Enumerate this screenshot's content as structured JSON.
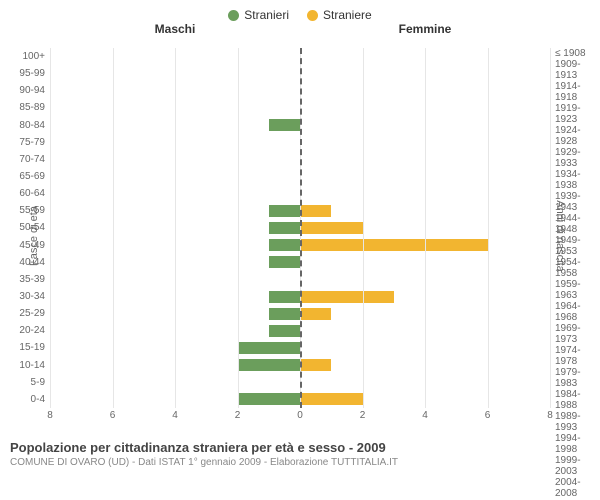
{
  "legend": {
    "male": {
      "label": "Stranieri",
      "color": "#6b9e5c"
    },
    "female": {
      "label": "Straniere",
      "color": "#f2b530"
    }
  },
  "headers": {
    "left": "Maschi",
    "right": "Femmine"
  },
  "axis_titles": {
    "left": "Fasce di età",
    "right": "Anni di nascita"
  },
  "chart": {
    "type": "population-pyramid",
    "xmax": 8,
    "x_ticks": [
      8,
      6,
      4,
      2,
      0,
      2,
      4,
      6,
      8
    ],
    "grid_color": "#e6e6e6",
    "center_line_color": "#666666",
    "bar_left_color": "#6b9e5c",
    "bar_right_color": "#f2b530",
    "background_color": "#ffffff",
    "label_fontsize": 10,
    "rows": [
      {
        "age": "100+",
        "birth": "≤ 1908",
        "m": 0,
        "f": 0
      },
      {
        "age": "95-99",
        "birth": "1909-1913",
        "m": 0,
        "f": 0
      },
      {
        "age": "90-94",
        "birth": "1914-1918",
        "m": 0,
        "f": 0
      },
      {
        "age": "85-89",
        "birth": "1919-1923",
        "m": 0,
        "f": 0
      },
      {
        "age": "80-84",
        "birth": "1924-1928",
        "m": 1,
        "f": 0
      },
      {
        "age": "75-79",
        "birth": "1929-1933",
        "m": 0,
        "f": 0
      },
      {
        "age": "70-74",
        "birth": "1934-1938",
        "m": 0,
        "f": 0
      },
      {
        "age": "65-69",
        "birth": "1939-1943",
        "m": 0,
        "f": 0
      },
      {
        "age": "60-64",
        "birth": "1944-1948",
        "m": 0,
        "f": 0
      },
      {
        "age": "55-59",
        "birth": "1949-1953",
        "m": 1,
        "f": 1
      },
      {
        "age": "50-54",
        "birth": "1954-1958",
        "m": 1,
        "f": 2
      },
      {
        "age": "45-49",
        "birth": "1959-1963",
        "m": 1,
        "f": 6
      },
      {
        "age": "40-44",
        "birth": "1964-1968",
        "m": 1,
        "f": 0
      },
      {
        "age": "35-39",
        "birth": "1969-1973",
        "m": 0,
        "f": 0
      },
      {
        "age": "30-34",
        "birth": "1974-1978",
        "m": 1,
        "f": 3
      },
      {
        "age": "25-29",
        "birth": "1979-1983",
        "m": 1,
        "f": 1
      },
      {
        "age": "20-24",
        "birth": "1984-1988",
        "m": 1,
        "f": 0
      },
      {
        "age": "15-19",
        "birth": "1989-1993",
        "m": 2,
        "f": 0
      },
      {
        "age": "10-14",
        "birth": "1994-1998",
        "m": 2,
        "f": 1
      },
      {
        "age": "5-9",
        "birth": "1999-2003",
        "m": 0,
        "f": 0
      },
      {
        "age": "0-4",
        "birth": "2004-2008",
        "m": 2,
        "f": 2
      }
    ]
  },
  "footer": {
    "title": "Popolazione per cittadinanza straniera per età e sesso - 2009",
    "subtitle": "COMUNE DI OVARO (UD) - Dati ISTAT 1° gennaio 2009 - Elaborazione TUTTITALIA.IT"
  }
}
